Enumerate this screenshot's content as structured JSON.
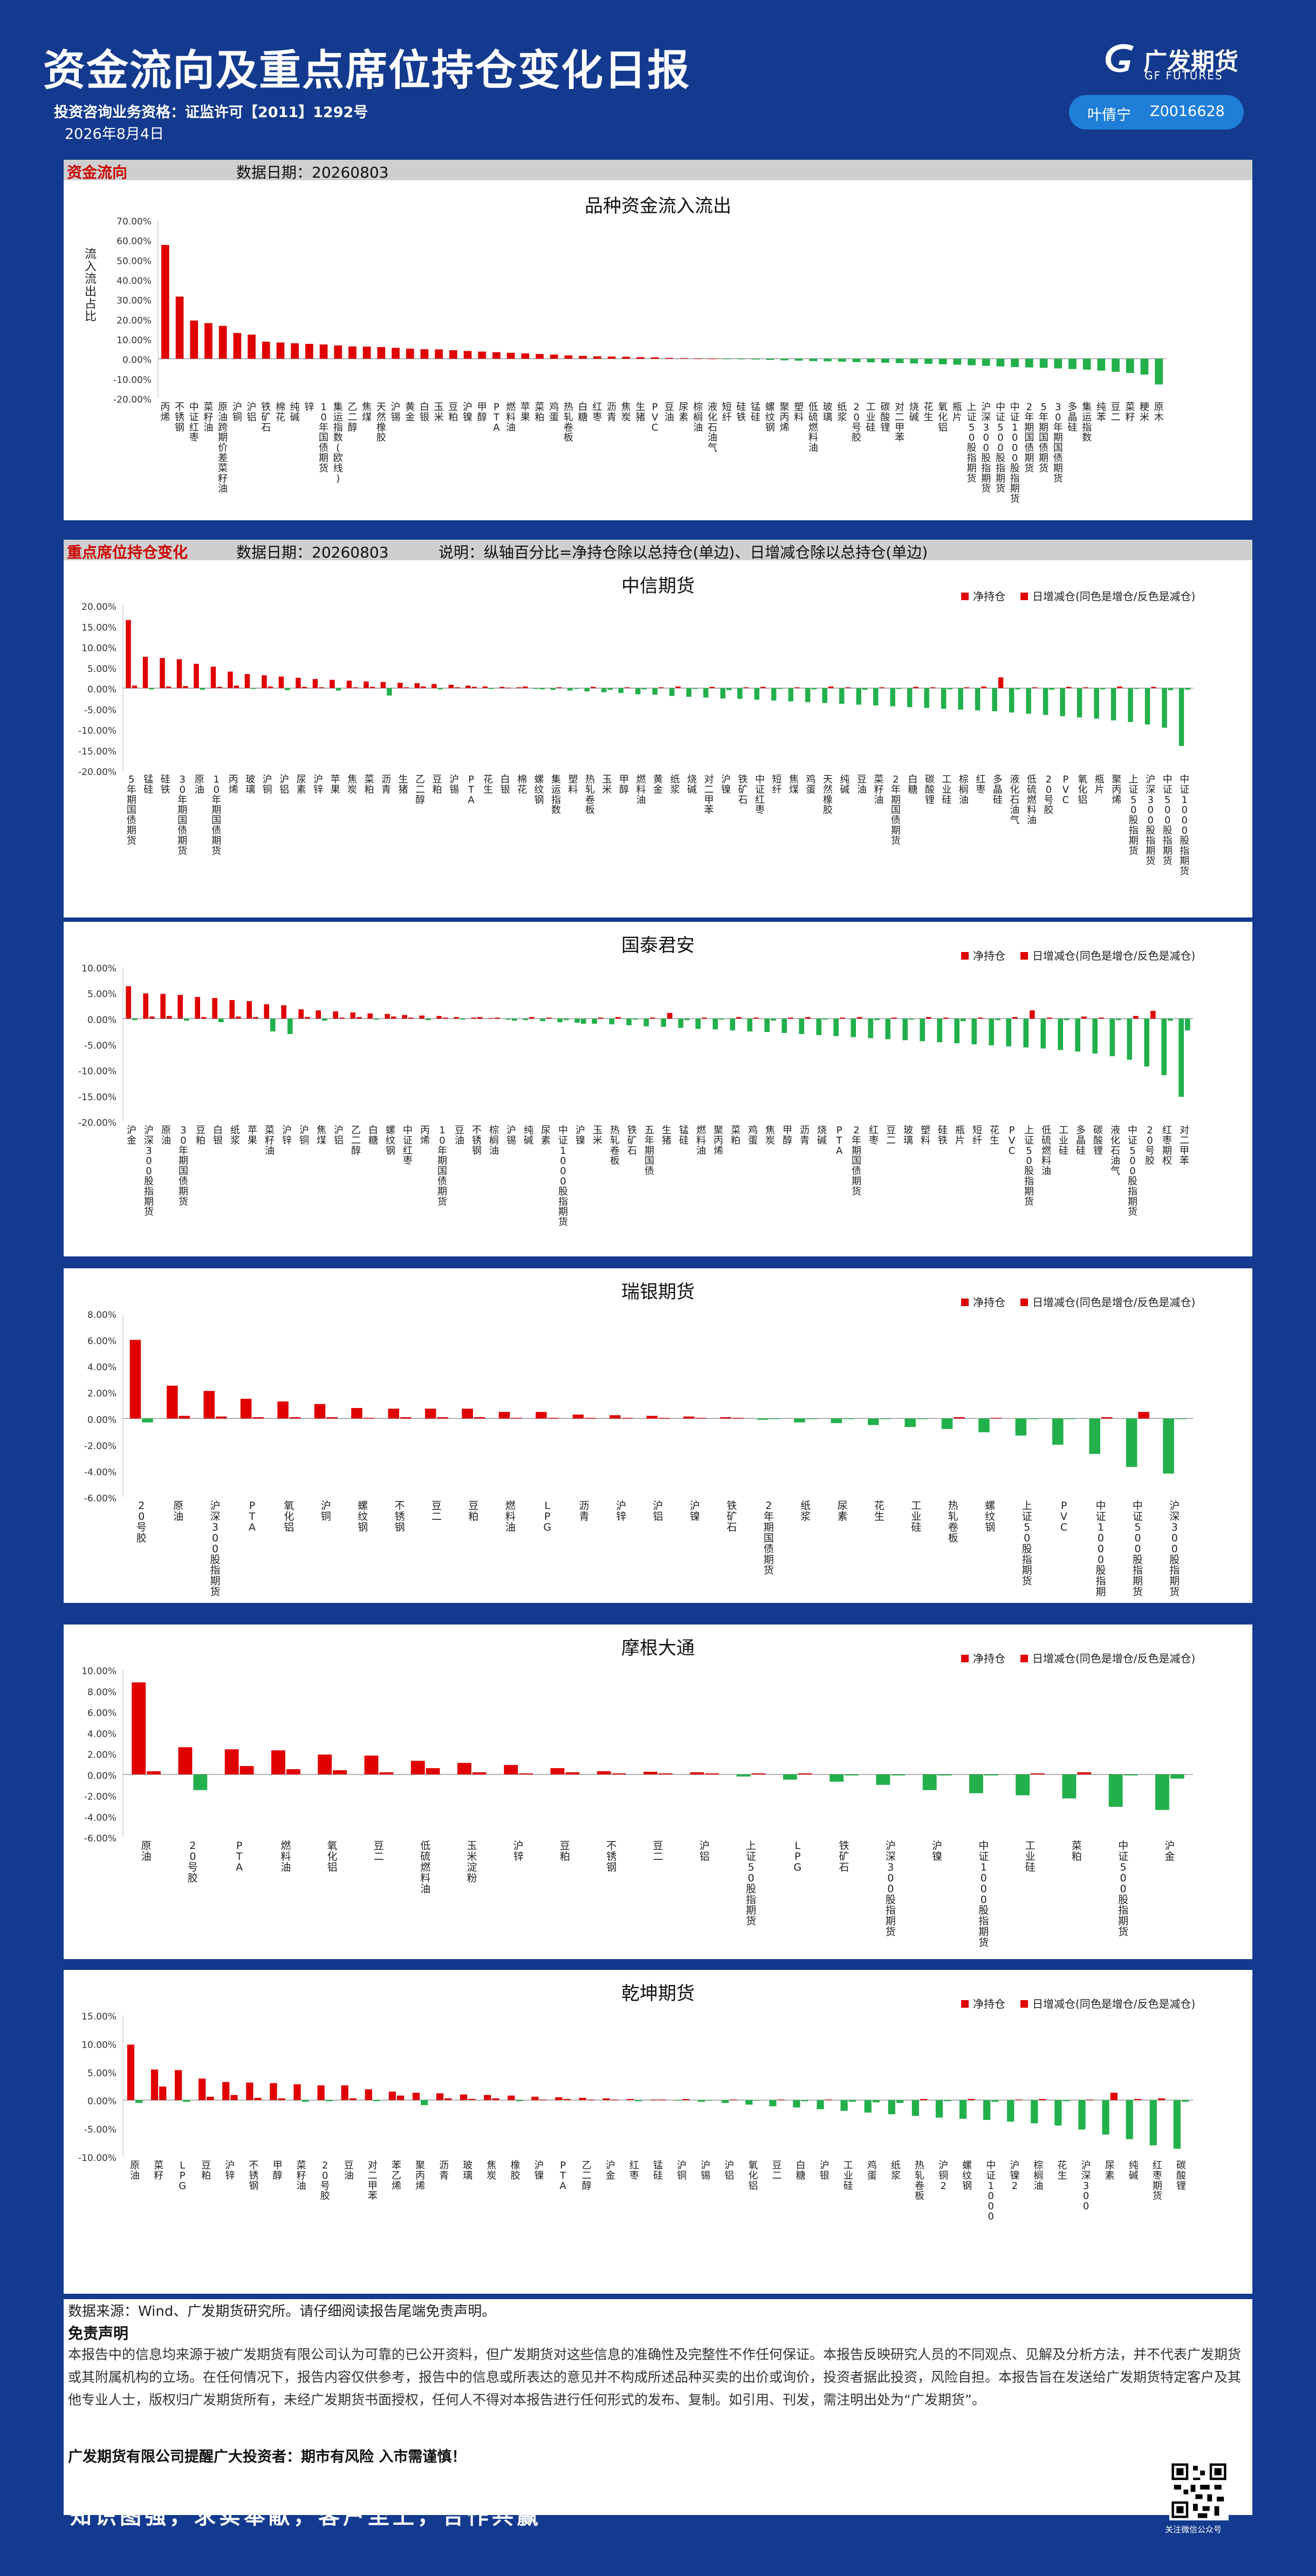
{
  "header": {
    "title": "资金流向及重点席位持仓变化日报",
    "license": "投资咨询业务资格：证监许可【2011】1292号",
    "date": "2026年8月4日",
    "brand_cn": "广发期货",
    "brand_en": "GF FUTURES",
    "analyst_name": "叶倩宁",
    "analyst_id": "Z0016628"
  },
  "colors": {
    "positive": "#e00000",
    "negative": "#22b04b",
    "background": "#133a8e"
  },
  "funds": {
    "section_label": "资金流向",
    "date_label": "数据日期：",
    "date": "20260803",
    "title": "品种资金流入流出",
    "ylabel": "流入流出占比"
  },
  "seats": {
    "section_label": "重点席位持仓变化",
    "date_label": "数据日期：",
    "date": "20260803",
    "note": "说明：纵轴百分比=净持仓除以总持仓(单边)、日增减仓除以总持仓(单边)"
  },
  "legend": {
    "net": "净持仓",
    "daily": "日增减仓(同色是增仓/反色是减仓)"
  },
  "chart_data": [
    {
      "id": "funds",
      "type": "bar",
      "title": "品种资金流入流出",
      "ylabel": "流入流出占比",
      "ylim": [
        -20,
        70
      ],
      "yticks": [
        -20,
        -10,
        0,
        10,
        20,
        30,
        40,
        50,
        60,
        70
      ],
      "grid": false,
      "categories": [
        "丙烯",
        "不锈钢",
        "中证红枣",
        "菜籽油",
        "原油跨期价差菜籽油",
        "沪铜",
        "沪铝",
        "铁矿石",
        "棉花",
        "纯碱",
        "锌",
        "10年国债期货",
        "集运指数(欧线)",
        "乙二醇",
        "焦煤",
        "天然橡胶",
        "沪锡",
        "黄金",
        "白银",
        "玉米",
        "豆粕",
        "沪镍",
        "甲醇",
        "PTA",
        "燃料油",
        "苹果",
        "菜粕",
        "鸡蛋",
        "热轧卷板",
        "白糖",
        "红枣",
        "沥青",
        "焦炭",
        "生猪",
        "PVC",
        "豆油",
        "尿素",
        "棕榈油",
        "液化石油气",
        "短纤",
        "硅铁",
        "锰硅",
        "螺纹钢",
        "聚丙烯",
        "塑料",
        "低硫燃料油",
        "玻璃",
        "纸浆",
        "20号胶",
        "工业硅",
        "碳酸锂",
        "对二甲苯",
        "烧碱",
        "花生",
        "氧化铝",
        "瓶片",
        "上证50股指期货",
        "沪深300股指期货",
        "中证500股指期货",
        "中证1000股指期货",
        "2年期国债期货",
        "5年期国债期货",
        "30年期国债期货",
        "多晶硅",
        "集运指数",
        "纯苯",
        "豆二",
        "菜籽",
        "粳米",
        "原木"
      ],
      "values": [
        57.5,
        31.4,
        19.3,
        18.0,
        16.6,
        13.0,
        12.2,
        8.6,
        8.2,
        7.8,
        7.5,
        7.2,
        6.7,
        6.2,
        6.1,
        5.9,
        5.5,
        5.1,
        4.8,
        4.7,
        4.3,
        3.9,
        3.6,
        3.3,
        3.0,
        2.7,
        2.4,
        2.1,
        1.7,
        1.4,
        1.2,
        1.1,
        1.0,
        0.8,
        0.7,
        0.4,
        0.3,
        0.2,
        0.1,
        -0.1,
        -0.3,
        -0.4,
        -0.6,
        -0.8,
        -1.0,
        -1.2,
        -1.3,
        -1.5,
        -1.7,
        -1.8,
        -2.0,
        -2.2,
        -2.4,
        -2.6,
        -2.8,
        -3.0,
        -3.3,
        -3.6,
        -3.9,
        -4.2,
        -4.4,
        -4.6,
        -4.9,
        -5.2,
        -5.5,
        -6.0,
        -6.6,
        -7.2,
        -8.0,
        -13.0
      ]
    },
    {
      "id": "citic",
      "type": "bar",
      "title": "中信期货",
      "ylim": [
        -20,
        20
      ],
      "yticks": [
        -20,
        -15,
        -10,
        -5,
        0,
        5,
        10,
        15,
        20
      ],
      "legend_position": "top-right",
      "categories": [
        "5年期国债期货",
        "锰硅",
        "硅铁",
        "30年期国债期货",
        "原油",
        "10年期国债期货",
        "丙烯",
        "玻璃",
        "沪铜",
        "沪铝",
        "尿素",
        "沪锌",
        "苹果",
        "焦炭",
        "菜粕",
        "沥青",
        "生猪",
        "乙二醇",
        "豆粕",
        "沪锡",
        "PTA",
        "花生",
        "白银",
        "棉花",
        "螺纹钢",
        "集运指数",
        "塑料",
        "热轧卷板",
        "玉米",
        "甲醇",
        "燃料油",
        "黄金",
        "纸浆",
        "烧碱",
        "对二甲苯",
        "沪镍",
        "铁矿石",
        "中证红枣",
        "短纤",
        "焦煤",
        "鸡蛋",
        "天然橡胶",
        "纯碱",
        "豆油",
        "菜籽油",
        "2年期国债期货",
        "白糖",
        "碳酸锂",
        "工业硅",
        "棕榈油",
        "红枣",
        "多晶硅",
        "液化石油气",
        "低硫燃料油",
        "20号胶",
        "PVC",
        "氧化铝",
        "瓶片",
        "聚丙烯",
        "上证50股指期货",
        "沪深300股指期货",
        "中证500股指期货",
        "中证1000股指期货"
      ],
      "series": [
        {
          "name": "净持仓",
          "values": [
            16.5,
            7.6,
            7.3,
            7.0,
            5.9,
            5.2,
            4.0,
            3.4,
            3.1,
            2.8,
            2.5,
            2.2,
            2.0,
            1.8,
            1.6,
            1.5,
            1.3,
            1.2,
            1.0,
            0.8,
            0.6,
            0.4,
            0.3,
            0.2,
            -0.2,
            -0.4,
            -0.6,
            -0.8,
            -1.0,
            -1.2,
            -1.5,
            -1.6,
            -1.9,
            -2.1,
            -2.3,
            -2.5,
            -2.6,
            -2.8,
            -3.0,
            -3.2,
            -3.4,
            -3.6,
            -3.8,
            -4.0,
            -4.2,
            -4.4,
            -4.6,
            -4.8,
            -5.0,
            -5.2,
            -5.4,
            -5.6,
            -5.9,
            -6.2,
            -6.5,
            -6.8,
            -7.1,
            -7.4,
            -7.8,
            -8.2,
            -8.8,
            -9.6,
            -14.0
          ]
        },
        {
          "name": "日增减仓",
          "values": [
            0.6,
            -0.3,
            0.4,
            0.5,
            -0.4,
            0.3,
            0.6,
            -0.2,
            0.4,
            -0.5,
            0.3,
            0.2,
            -0.6,
            0.2,
            0.3,
            -1.8,
            0.2,
            0.4,
            -0.3,
            0.2,
            0.3,
            -0.2,
            0.1,
            0.4,
            -0.3,
            0.2,
            -0.2,
            0.3,
            -0.4,
            0.2,
            -0.3,
            0.2,
            0.4,
            -0.2,
            0.3,
            -0.5,
            0.2,
            0.3,
            -0.2,
            0.2,
            -0.3,
            0.4,
            0.2,
            -0.4,
            0.2,
            -0.2,
            0.3,
            0.2,
            -0.3,
            0.2,
            0.4,
            2.6,
            -0.3,
            0.2,
            -0.4,
            0.3,
            0.2,
            -0.3,
            0.4,
            -0.2,
            0.3,
            -0.5,
            -0.4
          ]
        }
      ]
    },
    {
      "id": "gtja",
      "type": "bar",
      "title": "国泰君安",
      "ylim": [
        -20,
        10
      ],
      "yticks": [
        -20,
        -15,
        -10,
        -5,
        0,
        5,
        10
      ],
      "legend_position": "top-right",
      "categories": [
        "沪金",
        "沪深300股指期货",
        "原油",
        "30年期国债期货",
        "豆粕",
        "白银",
        "纸浆",
        "苹果",
        "菜籽油",
        "沪锌",
        "沪铜",
        "焦煤",
        "沪铝",
        "乙二醇",
        "白糖",
        "螺纹钢",
        "中证红枣",
        "丙烯",
        "10年期国债期货",
        "豆油",
        "不锈钢",
        "棕榈油",
        "沪锡",
        "纯碱",
        "尿素",
        "中证1000股指期货",
        "沪镍",
        "玉米",
        "热轧卷板",
        "铁矿石",
        "五年期国债",
        "生猪",
        "锰硅",
        "燃料油",
        "聚丙烯",
        "菜粕",
        "鸡蛋",
        "焦炭",
        "甲醇",
        "沥青",
        "烧碱",
        "PTA",
        "2年期国债期货",
        "红枣",
        "豆二",
        "玻璃",
        "塑料",
        "硅铁",
        "瓶片",
        "短纤",
        "花生",
        "PVC",
        "上证50股指期货",
        "低硫燃料油",
        "工业硅",
        "多晶硅",
        "碳酸锂",
        "液化石油气",
        "中证500股指期货",
        "20号胶",
        "红枣期权",
        "对二甲苯"
      ],
      "series": [
        {
          "name": "净持仓",
          "values": [
            6.3,
            4.9,
            4.8,
            4.6,
            4.2,
            4.0,
            3.6,
            3.4,
            2.8,
            2.6,
            1.8,
            1.6,
            1.4,
            1.2,
            1.0,
            0.9,
            0.7,
            0.6,
            0.5,
            0.3,
            0.2,
            0.1,
            -0.2,
            -0.3,
            -0.5,
            -0.7,
            -0.8,
            -1.0,
            -1.1,
            -1.3,
            -1.5,
            -1.6,
            -1.8,
            -2.0,
            -2.1,
            -2.3,
            -2.5,
            -2.6,
            -2.8,
            -3.0,
            -3.2,
            -3.4,
            -3.6,
            -3.8,
            -4.0,
            -4.2,
            -4.4,
            -4.6,
            -4.8,
            -5.0,
            -5.2,
            -5.4,
            -5.6,
            -5.8,
            -6.1,
            -6.4,
            -6.8,
            -7.3,
            -8.0,
            -9.3,
            -11.0,
            -15.2
          ]
        },
        {
          "name": "日增减仓",
          "values": [
            -0.3,
            0.4,
            0.5,
            -0.4,
            0.3,
            -0.7,
            0.4,
            0.3,
            -2.5,
            -3.0,
            0.3,
            -0.4,
            0.2,
            0.3,
            -0.2,
            0.4,
            0.2,
            -0.3,
            0.2,
            -0.2,
            0.3,
            0.2,
            -0.4,
            0.3,
            0.2,
            -0.3,
            -1.0,
            0.2,
            0.3,
            -0.2,
            0.2,
            1.1,
            -0.3,
            0.2,
            -0.2,
            0.3,
            0.2,
            -0.4,
            0.2,
            0.3,
            -0.2,
            0.2,
            0.3,
            -0.3,
            0.2,
            -0.2,
            0.3,
            0.2,
            -0.5,
            0.2,
            -0.3,
            0.3,
            1.6,
            0.2,
            -0.3,
            0.4,
            0.2,
            -0.3,
            0.5,
            1.5,
            -0.4,
            -2.3
          ]
        }
      ]
    },
    {
      "id": "ubs",
      "type": "bar",
      "title": "瑞银期货",
      "ylim": [
        -6,
        8
      ],
      "yticks": [
        -6,
        -4,
        -2,
        0,
        2,
        4,
        6,
        8
      ],
      "legend_position": "top-right",
      "categories": [
        "20号胶",
        "原油",
        "沪深300股指期货",
        "PTA",
        "氧化铝",
        "沪铜",
        "螺纹钢",
        "不锈钢",
        "豆二",
        "豆粕",
        "燃料油",
        "LPG",
        "沥青",
        "沪锌",
        "沪铝",
        "沪镍",
        "铁矿石",
        "2年期国债期货",
        "纸浆",
        "尿素",
        "花生",
        "工业硅",
        "热轧卷板",
        "螺纹钢",
        "上证50股指期货",
        "PVC",
        "中证1000股指期货",
        "中证500股指期货",
        "沪深300股指期货2"
      ],
      "series": [
        {
          "name": "净持仓",
          "values": [
            6.0,
            2.5,
            2.1,
            1.5,
            1.3,
            1.1,
            0.8,
            0.75,
            0.75,
            0.75,
            0.5,
            0.5,
            0.3,
            0.25,
            0.2,
            0.15,
            0.1,
            -0.1,
            -0.3,
            -0.35,
            -0.5,
            -0.65,
            -0.8,
            -1.05,
            -1.3,
            -2.0,
            -2.7,
            -3.7,
            -4.2
          ]
        },
        {
          "name": "日增减仓",
          "values": [
            -0.3,
            0.2,
            0.15,
            0.1,
            0.1,
            0.1,
            0.05,
            0.1,
            0.1,
            0.1,
            0.05,
            0.05,
            0.05,
            0.05,
            0.05,
            0.05,
            0.05,
            -0.05,
            -0.05,
            -0.05,
            -0.05,
            -0.05,
            0.1,
            0.05,
            -0.05,
            -0.05,
            0.1,
            0.5,
            -0.05
          ]
        }
      ]
    },
    {
      "id": "jpm",
      "type": "bar",
      "title": "摩根大通",
      "ylim": [
        -6,
        10
      ],
      "yticks": [
        -6,
        -4,
        -2,
        0,
        2,
        4,
        6,
        8,
        10
      ],
      "legend_position": "top-right",
      "categories": [
        "原油",
        "20号胶",
        "PTA",
        "燃料油",
        "氧化铝",
        "豆二",
        "低硫燃料油",
        "玉米淀粉",
        "沪锌",
        "豆粕",
        "不锈钢",
        "豆二",
        "沪铝",
        "上证50股指期货",
        "LPG",
        "铁矿石",
        "沪深300股指期货",
        "沪镍",
        "中证1000股指期货",
        "工业硅",
        "菜粕",
        "中证500股指期货",
        "沪金"
      ],
      "series": [
        {
          "name": "净持仓",
          "values": [
            8.8,
            2.6,
            2.4,
            2.3,
            1.9,
            1.8,
            1.3,
            1.1,
            0.9,
            0.6,
            0.3,
            0.25,
            0.2,
            -0.2,
            -0.5,
            -0.7,
            -1.0,
            -1.5,
            -1.8,
            -2.0,
            -2.3,
            -3.1,
            -3.4
          ]
        },
        {
          "name": "日增减仓",
          "values": [
            0.3,
            -1.5,
            0.8,
            0.5,
            0.4,
            0.2,
            0.6,
            0.2,
            0.1,
            0.2,
            0.1,
            0.1,
            0.1,
            0.1,
            0.1,
            -0.1,
            -0.1,
            -0.1,
            -0.1,
            0.1,
            0.2,
            -0.1,
            -0.4
          ]
        }
      ]
    },
    {
      "id": "qiankun",
      "type": "bar",
      "title": "乾坤期货",
      "ylim": [
        -10,
        15
      ],
      "yticks": [
        -10,
        -5,
        0,
        5,
        10,
        15
      ],
      "legend_position": "top-right",
      "categories": [
        "原油",
        "菜籽",
        "LPG",
        "豆粕",
        "沪锌",
        "不锈钢",
        "甲醇",
        "菜籽油",
        "20号胶",
        "豆油",
        "对二甲苯",
        "苯乙烯",
        "聚丙烯",
        "沥青",
        "玻璃",
        "焦炭",
        "橡胶",
        "沪镍",
        "PTA",
        "乙二醇",
        "沪金",
        "红枣",
        "锰硅",
        "沪铜",
        "沪锡",
        "沪铝",
        "氧化铝",
        "豆二",
        "白糖",
        "沪银",
        "工业硅",
        "鸡蛋",
        "纸浆",
        "热轧卷板",
        "沪铜2",
        "螺纹钢",
        "中证1000",
        "沪镍2",
        "棕榈油",
        "花生",
        "沪深300",
        "尿素",
        "纯碱",
        "红枣期货",
        "碳酸锂"
      ],
      "series": [
        {
          "name": "净持仓",
          "values": [
            9.8,
            5.4,
            5.3,
            3.8,
            3.2,
            3.1,
            3.0,
            2.8,
            2.6,
            2.6,
            1.9,
            1.5,
            1.3,
            1.2,
            1.0,
            0.9,
            0.8,
            0.6,
            0.5,
            0.4,
            0.3,
            0.2,
            0.1,
            -0.1,
            -0.3,
            -0.5,
            -0.8,
            -1.1,
            -1.3,
            -1.6,
            -1.9,
            -2.2,
            -2.5,
            -2.8,
            -3.1,
            -3.3,
            -3.5,
            -3.8,
            -4.1,
            -4.5,
            -5.2,
            -6.1,
            -6.9,
            -8.0,
            -8.6
          ]
        },
        {
          "name": "日增减仓",
          "values": [
            -0.5,
            2.4,
            -0.3,
            0.6,
            0.9,
            0.4,
            0.3,
            -0.3,
            -0.2,
            0.3,
            -0.2,
            0.8,
            -0.9,
            0.3,
            0.2,
            0.3,
            -0.2,
            0.1,
            0.2,
            0.1,
            0.1,
            -0.2,
            0.1,
            0.2,
            -0.1,
            0.1,
            -0.1,
            0.1,
            -0.2,
            0.1,
            -0.3,
            -0.4,
            -0.5,
            0.2,
            -0.2,
            0.2,
            -0.3,
            0.1,
            0.2,
            -0.2,
            0.1,
            1.3,
            0.2,
            0.3,
            -0.3
          ]
        }
      ]
    }
  ],
  "footer": {
    "source": "数据来源：Wind、广发期货研究所。请仔细阅读报告尾端免责声明。",
    "disclaimer_title": "免责声明",
    "disclaimer": "本报告中的信息均来源于被广发期货有限公司认为可靠的已公开资料，但广发期货对这些信息的准确性及完整性不作任何保证。本报告反映研究人员的不同观点、见解及分析方法，并不代表广发期货或其附属机构的立场。在任何情况下，报告内容仅供参考，报告中的信息或所表达的意见并不构成所述品种买卖的出价或询价，投资者据此投资，风险自担。本报告旨在发送给广发期货特定客户及其他专业人士，版权归广发期货所有，未经广发期货书面授权，任何人不得对本报告进行任何形式的发布、复制。如引用、刊发，需注明出处为“广发期货”。",
    "reminder": "广发期货有限公司提醒广大投资者：期市有风险 入市需谨慎！",
    "slogan": "知识图强，求实奉献，客户至上，合作共赢",
    "qr_label": "关注微信公众号"
  }
}
